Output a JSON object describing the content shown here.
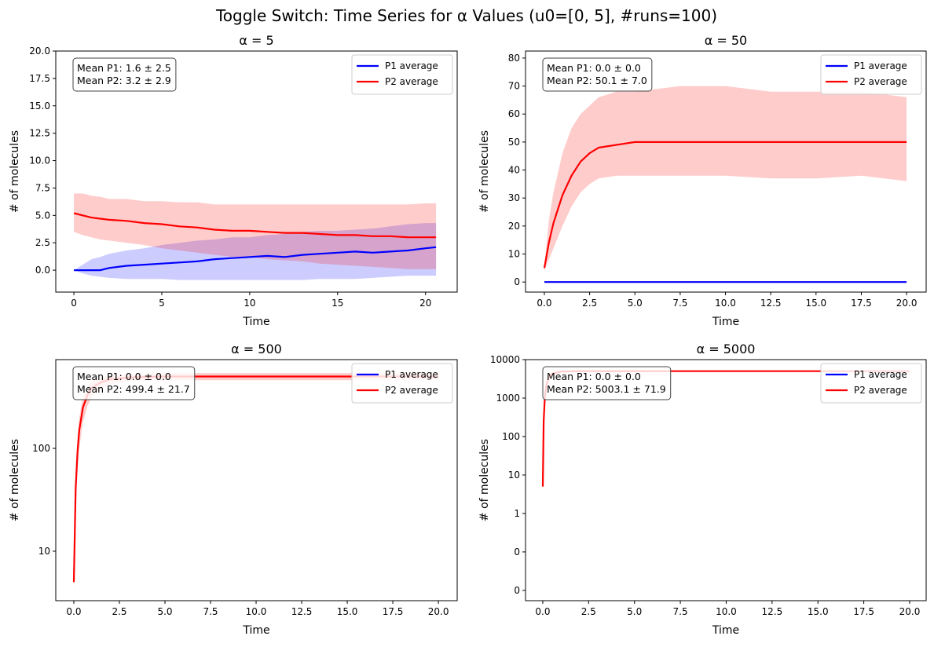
{
  "title": "Toggle Switch: Time Series for α Values (u0=[0, 5], #runs=100)",
  "chart_data": [
    {
      "type": "line",
      "title": "α = 5",
      "xlabel": "Time",
      "ylabel": "# of molecules",
      "yscale": "linear",
      "legend": "upper right",
      "annotation": [
        "Mean P1: 1.6 ± 2.5",
        "Mean P2: 3.2 ± 2.9"
      ],
      "xlim": [
        -1.03,
        21.8
      ],
      "ylim": [
        -2.0,
        20
      ],
      "xticks": [
        0,
        5,
        10,
        15,
        20
      ],
      "yticks": [
        {
          "value": 0,
          "label": "0.0"
        },
        2.5,
        {
          "value": 5,
          "label": "5.0"
        },
        7.5,
        {
          "value": 10,
          "label": "10.0"
        },
        12.5,
        {
          "value": 15,
          "label": "15.0"
        },
        17.5,
        {
          "value": 20,
          "label": "20.0"
        }
      ],
      "x": [
        0,
        0.5,
        1,
        1.5,
        2,
        3,
        4,
        5,
        6,
        7,
        8,
        9,
        10,
        11,
        12,
        13,
        14,
        15,
        16,
        17,
        18,
        19,
        20,
        20.6
      ],
      "series": [
        {
          "name": "P1 average",
          "color": "#0000ff",
          "values": [
            0,
            0,
            0,
            0,
            0.2,
            0.4,
            0.5,
            0.6,
            0.7,
            0.8,
            1.0,
            1.1,
            1.2,
            1.3,
            1.2,
            1.4,
            1.5,
            1.6,
            1.7,
            1.6,
            1.7,
            1.8,
            2.0,
            2.1
          ],
          "band_upper": [
            0,
            0.5,
            1,
            1.2,
            1.5,
            1.8,
            2,
            2.3,
            2.5,
            2.7,
            2.8,
            3,
            3,
            3.2,
            3.3,
            3.5,
            3.6,
            3.6,
            3.7,
            3.8,
            4,
            4.2,
            4.3,
            4.3
          ],
          "band_lower": [
            0,
            -0.3,
            -0.5,
            -0.6,
            -0.7,
            -0.8,
            -0.8,
            -0.8,
            -0.9,
            -0.9,
            -0.9,
            -0.9,
            -0.9,
            -0.9,
            -0.9,
            -0.9,
            -0.8,
            -0.8,
            -0.8,
            -0.7,
            -0.6,
            -0.5,
            -0.5,
            -0.5
          ]
        },
        {
          "name": "P2 average",
          "color": "#ff0000",
          "values": [
            5.2,
            5.0,
            4.8,
            4.7,
            4.6,
            4.5,
            4.3,
            4.2,
            4.0,
            3.9,
            3.7,
            3.6,
            3.6,
            3.5,
            3.4,
            3.4,
            3.3,
            3.2,
            3.2,
            3.1,
            3.1,
            3.0,
            3.0,
            3.0
          ],
          "band_upper": [
            7,
            7,
            6.8,
            6.7,
            6.5,
            6.5,
            6.3,
            6.3,
            6.2,
            6.2,
            6,
            6,
            6,
            6,
            6,
            6,
            6,
            6,
            6,
            6,
            6,
            6,
            6.1,
            6.1
          ],
          "band_lower": [
            3.5,
            3.2,
            3.0,
            2.8,
            2.7,
            2.5,
            2.3,
            2.0,
            1.8,
            1.6,
            1.4,
            1.2,
            1.2,
            1.0,
            0.9,
            0.8,
            0.6,
            0.5,
            0.4,
            0.3,
            0.2,
            0.1,
            0.1,
            0.1
          ]
        }
      ]
    },
    {
      "type": "line",
      "title": "α = 50",
      "xlabel": "Time",
      "ylabel": "# of molecules",
      "yscale": "linear",
      "legend": "upper right",
      "annotation": [
        "Mean P1: 0.0 ± 0.0",
        "Mean P2: 50.1 ± 7.0"
      ],
      "xlim": [
        -1.04,
        21.08
      ],
      "ylim": [
        -3.6,
        82.5
      ],
      "xticks": [
        {
          "value": 0,
          "label": "0.0"
        },
        2.5,
        {
          "value": 5,
          "label": "5.0"
        },
        7.5,
        {
          "value": 10,
          "label": "10.0"
        },
        12.5,
        {
          "value": 15,
          "label": "15.0"
        },
        17.5,
        {
          "value": 20,
          "label": "20.0"
        }
      ],
      "yticks": [
        0,
        10,
        20,
        30,
        40,
        50,
        60,
        70,
        80
      ],
      "x": [
        0,
        0.25,
        0.5,
        1,
        1.5,
        2,
        2.5,
        3,
        4,
        5,
        7.5,
        10,
        12.5,
        15,
        17.5,
        20
      ],
      "series": [
        {
          "name": "P1 average",
          "color": "#0000ff",
          "values": [
            0,
            0,
            0,
            0,
            0,
            0,
            0,
            0,
            0,
            0,
            0,
            0,
            0,
            0,
            0,
            0
          ]
        },
        {
          "name": "P2 average",
          "color": "#ff0000",
          "values": [
            5,
            14,
            21,
            31,
            38,
            43,
            46,
            48,
            49,
            50,
            50,
            50,
            50,
            50,
            50,
            50
          ],
          "band_upper": [
            6,
            22,
            32,
            46,
            55,
            60,
            63,
            66,
            68,
            68,
            70,
            70,
            68,
            68,
            68,
            66
          ],
          "band_lower": [
            4,
            8,
            12,
            20,
            27,
            32,
            35,
            37,
            38,
            38,
            38,
            38,
            37,
            37,
            38,
            36
          ]
        }
      ]
    },
    {
      "type": "line",
      "title": "α = 500",
      "xlabel": "Time",
      "ylabel": "# of molecules",
      "yscale": "log",
      "legend": "upper right",
      "annotation": [
        "Mean P1: 0.0 ± 0.0",
        "Mean P2: 499.4 ± 21.7"
      ],
      "xlim": [
        -0.99,
        21.03
      ],
      "ylim": [
        3.3,
        730
      ],
      "xticks": [
        {
          "value": 0,
          "label": "0.0"
        },
        2.5,
        {
          "value": 5,
          "label": "5.0"
        },
        7.5,
        {
          "value": 10,
          "label": "10.0"
        },
        12.5,
        {
          "value": 15,
          "label": "15.0"
        },
        17.5,
        {
          "value": 20,
          "label": "20.0"
        }
      ],
      "yticks": [
        10,
        100
      ],
      "x": [
        0,
        0.1,
        0.2,
        0.3,
        0.5,
        0.75,
        1,
        1.5,
        2,
        3,
        5,
        7.5,
        10,
        12.5,
        15,
        17.5,
        20
      ],
      "series": [
        {
          "name": "P1 average",
          "color": "#0000ff",
          "values": [
            null,
            null,
            null,
            null,
            null,
            null,
            null,
            null,
            null,
            null,
            null,
            null,
            null,
            null,
            null,
            null,
            null
          ]
        },
        {
          "name": "P2 average",
          "color": "#ff0000",
          "values": [
            5,
            40,
            90,
            150,
            250,
            330,
            390,
            440,
            470,
            490,
            500,
            500,
            500,
            500,
            500,
            500,
            500
          ],
          "band_upper": [
            6,
            60,
            130,
            200,
            320,
            400,
            450,
            490,
            510,
            530,
            540,
            540,
            540,
            540,
            540,
            540,
            540
          ],
          "band_lower": [
            4,
            25,
            60,
            100,
            180,
            260,
            320,
            380,
            420,
            450,
            460,
            460,
            460,
            460,
            460,
            460,
            460
          ]
        }
      ]
    },
    {
      "type": "line",
      "title": "α = 5000",
      "xlabel": "Time",
      "ylabel": "# of molecules",
      "yscale": "log",
      "legend": "upper right",
      "annotation": [
        "Mean P1: 0.0 ± 0.0",
        "Mean P2: 5003.1 ± 71.9"
      ],
      "xlim": [
        -0.94,
        20.9
      ],
      "ylim": [
        0.0054,
        10000
      ],
      "xticks": [
        {
          "value": 0,
          "label": "0.0"
        },
        2.5,
        {
          "value": 5,
          "label": "5.0"
        },
        7.5,
        {
          "value": 10,
          "label": "10.0"
        },
        12.5,
        {
          "value": 15,
          "label": "15.0"
        },
        17.5,
        {
          "value": 20,
          "label": "20.0"
        }
      ],
      "yticks": [
        {
          "value": 0.01,
          "label": "0"
        },
        {
          "value": 0.1,
          "label": "0"
        },
        1,
        10,
        100,
        1000,
        10000
      ],
      "x": [
        0,
        0.05,
        0.1,
        0.15,
        0.2,
        0.3,
        0.5,
        1,
        2,
        5,
        10,
        15,
        20
      ],
      "series": [
        {
          "name": "P1 average",
          "color": "#0000ff",
          "values": [
            null,
            null,
            null,
            null,
            null,
            null,
            null,
            null,
            null,
            null,
            null,
            null,
            null
          ]
        },
        {
          "name": "P2 average",
          "color": "#ff0000",
          "values": [
            5,
            250,
            800,
            1500,
            2200,
            3200,
            4300,
            4900,
            5000,
            5000,
            5000,
            5000,
            5000
          ]
        }
      ]
    }
  ]
}
